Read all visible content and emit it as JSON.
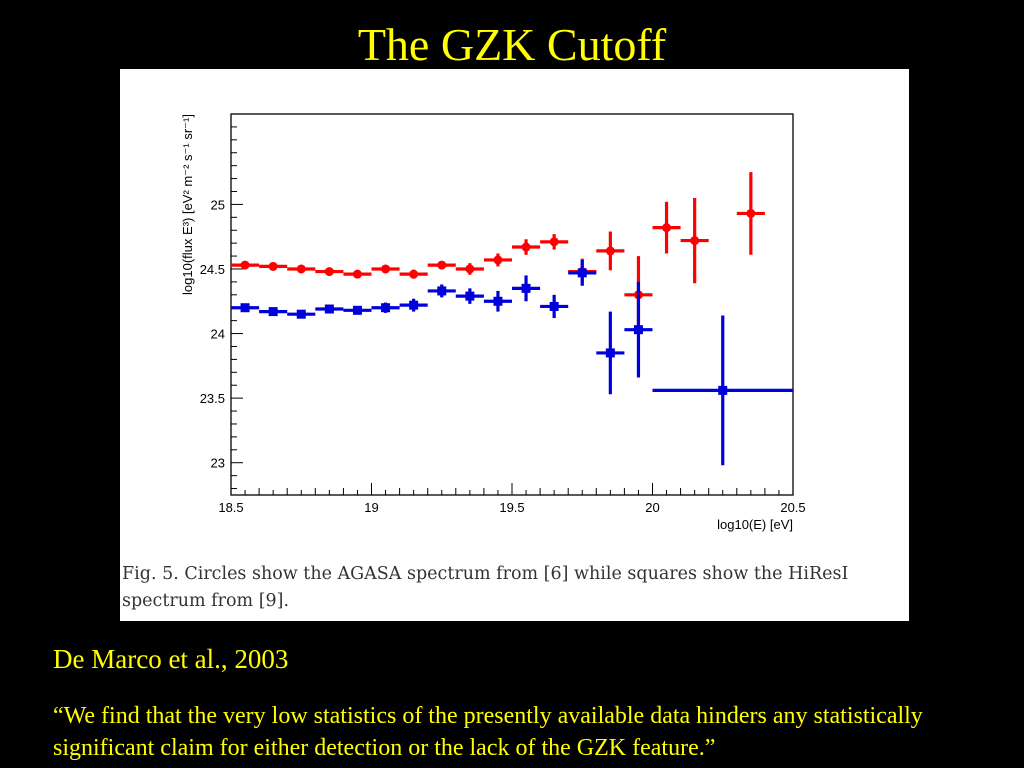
{
  "slide": {
    "title": "The GZK Cutoff",
    "citation": "De Marco et al., 2003",
    "quote": "“We find that the very low statistics of the presently available data hinders any statistically significant claim for either detection or the lack of the GZK feature.”"
  },
  "figure": {
    "caption": "Fig. 5. Circles show the AGASA spectrum from [6] while squares show the HiResI spectrum from [9]."
  },
  "colors": {
    "title_text": "#ffff00",
    "background": "#000000",
    "agasa": "#ff0000",
    "hires": "#0000dd"
  },
  "chart_data": {
    "type": "scatter",
    "title": "",
    "xlabel": "log10(E) [eV]",
    "ylabel": "log10(flux E³) [eV² m⁻² s⁻¹ sr⁻¹]",
    "xlim": [
      18.5,
      20.5
    ],
    "ylim": [
      22.75,
      25.7
    ],
    "xticks": [
      18.5,
      19,
      19.5,
      20,
      20.5
    ],
    "xtick_labels": [
      "18.5",
      "19",
      "19.5",
      "20",
      "20.5"
    ],
    "yticks": [
      23,
      23.5,
      24,
      24.5,
      25
    ],
    "ytick_labels": [
      "23",
      "23.5",
      "24",
      "24.5",
      "25"
    ],
    "grid": false,
    "series": [
      {
        "name": "AGASA",
        "marker": "circle",
        "color": "#ff0000",
        "points": [
          {
            "x": 18.55,
            "y": 24.53,
            "yerr": 0.02,
            "xerr": 0.05
          },
          {
            "x": 18.65,
            "y": 24.52,
            "yerr": 0.02,
            "xerr": 0.05
          },
          {
            "x": 18.75,
            "y": 24.5,
            "yerr": 0.02,
            "xerr": 0.05
          },
          {
            "x": 18.85,
            "y": 24.48,
            "yerr": 0.02,
            "xerr": 0.05
          },
          {
            "x": 18.95,
            "y": 24.46,
            "yerr": 0.02,
            "xerr": 0.05
          },
          {
            "x": 19.05,
            "y": 24.5,
            "yerr": 0.025,
            "xerr": 0.05
          },
          {
            "x": 19.15,
            "y": 24.46,
            "yerr": 0.035,
            "xerr": 0.05
          },
          {
            "x": 19.25,
            "y": 24.53,
            "yerr": 0.025,
            "xerr": 0.05
          },
          {
            "x": 19.35,
            "y": 24.5,
            "yerr": 0.045,
            "xerr": 0.05
          },
          {
            "x": 19.45,
            "y": 24.57,
            "yerr": 0.05,
            "xerr": 0.05
          },
          {
            "x": 19.55,
            "y": 24.67,
            "yerr": 0.06,
            "xerr": 0.05
          },
          {
            "x": 19.65,
            "y": 24.71,
            "yerr": 0.06,
            "xerr": 0.05
          },
          {
            "x": 19.75,
            "y": 24.48,
            "yerr": 0.1,
            "xerr": 0.05
          },
          {
            "x": 19.85,
            "y": 24.64,
            "yerr": 0.15,
            "xerr": 0.05
          },
          {
            "x": 19.95,
            "y": 24.3,
            "yerr": 0.3,
            "xerr": 0.05
          },
          {
            "x": 20.05,
            "y": 24.82,
            "yerr": 0.2,
            "xerr": 0.05
          },
          {
            "x": 20.15,
            "y": 24.72,
            "yerr": 0.33,
            "xerr": 0.05
          },
          {
            "x": 20.35,
            "y": 24.93,
            "yerr": 0.32,
            "xerr": 0.05
          }
        ]
      },
      {
        "name": "HiResI",
        "marker": "square",
        "color": "#0000dd",
        "points": [
          {
            "x": 18.55,
            "y": 24.2,
            "yerr": 0.02,
            "xerr": 0.05
          },
          {
            "x": 18.65,
            "y": 24.17,
            "yerr": 0.02,
            "xerr": 0.05
          },
          {
            "x": 18.75,
            "y": 24.15,
            "yerr": 0.02,
            "xerr": 0.05
          },
          {
            "x": 18.85,
            "y": 24.19,
            "yerr": 0.02,
            "xerr": 0.05
          },
          {
            "x": 18.95,
            "y": 24.18,
            "yerr": 0.03,
            "xerr": 0.05
          },
          {
            "x": 19.05,
            "y": 24.2,
            "yerr": 0.04,
            "xerr": 0.05
          },
          {
            "x": 19.15,
            "y": 24.22,
            "yerr": 0.05,
            "xerr": 0.05
          },
          {
            "x": 19.25,
            "y": 24.33,
            "yerr": 0.05,
            "xerr": 0.05
          },
          {
            "x": 19.35,
            "y": 24.29,
            "yerr": 0.06,
            "xerr": 0.05
          },
          {
            "x": 19.45,
            "y": 24.25,
            "yerr": 0.08,
            "xerr": 0.05
          },
          {
            "x": 19.55,
            "y": 24.35,
            "yerr": 0.1,
            "xerr": 0.05
          },
          {
            "x": 19.65,
            "y": 24.21,
            "yerr": 0.09,
            "xerr": 0.05
          },
          {
            "x": 19.75,
            "y": 24.47,
            "yerr": 0.1,
            "xerr": 0.05
          },
          {
            "x": 19.85,
            "y": 23.85,
            "yerr": 0.32,
            "xerr": 0.05
          },
          {
            "x": 19.95,
            "y": 24.03,
            "yerr": 0.37,
            "xerr": 0.05
          },
          {
            "x": 20.25,
            "y": 23.56,
            "yerr": 0.58,
            "xerr": 0.25
          }
        ]
      }
    ]
  }
}
